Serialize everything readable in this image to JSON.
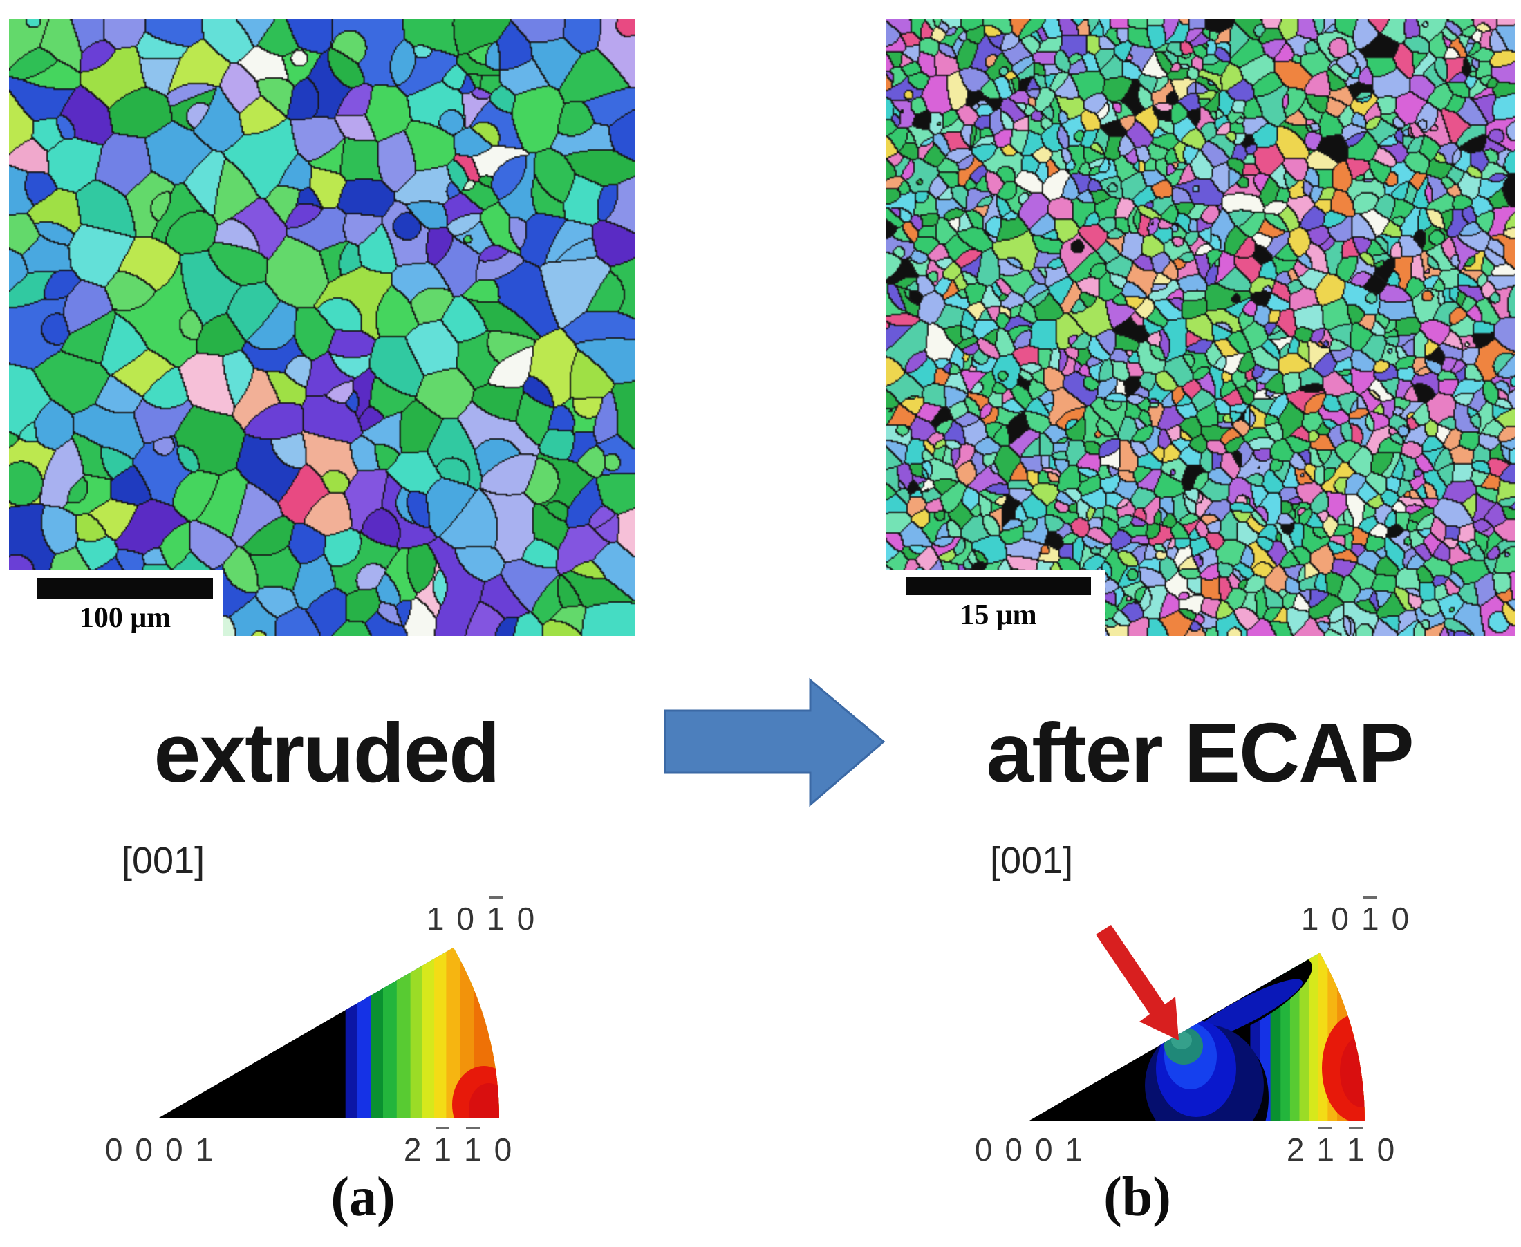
{
  "figure": {
    "panel_a": {
      "micrograph": {
        "scale_bar_label": "100 μm"
      },
      "state_label": "extruded",
      "pole_figure": {
        "axis_label": "[001]",
        "corner_labels": {
          "top_right": {
            "digits": [
              "1",
              "0",
              "1",
              "0"
            ],
            "overbars": [
              2
            ]
          },
          "bottom_left": {
            "digits": [
              "0",
              "0",
              "0",
              "1"
            ],
            "overbars": []
          },
          "bottom_right": {
            "digits": [
              "2",
              "1",
              "1",
              "0"
            ],
            "overbars": [
              1,
              2
            ]
          }
        }
      },
      "caption": "(a)"
    },
    "panel_b": {
      "micrograph": {
        "scale_bar_label": "15 μm"
      },
      "state_label": "after ECAP",
      "pole_figure": {
        "axis_label": "[001]",
        "corner_labels": {
          "top_right": {
            "digits": [
              "1",
              "0",
              "1",
              "0"
            ],
            "overbars": [
              2
            ]
          },
          "bottom_left": {
            "digits": [
              "0",
              "0",
              "0",
              "1"
            ],
            "overbars": []
          },
          "bottom_right": {
            "digits": [
              "2",
              "1",
              "1",
              "0"
            ],
            "overbars": [
              1,
              2
            ]
          }
        }
      },
      "caption": "(b)",
      "annotation_arrow_color": "#d81f1f"
    },
    "transition_arrow": {
      "fill": "#4c7fbd",
      "stroke": "#3b69a5"
    }
  },
  "colors": {
    "background": "#ffffff",
    "scale_bar": "#0a0a0a",
    "grain_boundary": "#161616",
    "ipf_base": "#000000",
    "ipf_contours": [
      "#0b16a6",
      "#1532e6",
      "#0a9130",
      "#23b53c",
      "#58cb32",
      "#9bdc26",
      "#d6e81c",
      "#f3dc16",
      "#f6b511",
      "#f2930b",
      "#ee7106"
    ],
    "ipf_red_hot": "#e7190a",
    "ipf_red_core": "#d90f0f",
    "ipf_blue_blob": [
      "#050e6e",
      "#0a18cc",
      "#1540ee"
    ],
    "ipf_blue_streak": "#0a18b8",
    "ipf_teal_spot": [
      "#1f8878",
      "#35a08b"
    ],
    "map_a_palette": [
      {
        "c": "#2fbf55",
        "w": 10
      },
      {
        "c": "#27b247",
        "w": 6
      },
      {
        "c": "#45d55e",
        "w": 7
      },
      {
        "c": "#63d96b",
        "w": 5
      },
      {
        "c": "#9fe045",
        "w": 5
      },
      {
        "c": "#bce84f",
        "w": 3
      },
      {
        "c": "#31c9a1",
        "w": 5
      },
      {
        "c": "#45dcc3",
        "w": 6
      },
      {
        "c": "#63e0d8",
        "w": 4
      },
      {
        "c": "#49a8e0",
        "w": 5
      },
      {
        "c": "#66b5ea",
        "w": 5
      },
      {
        "c": "#8fc3ee",
        "w": 3
      },
      {
        "c": "#2a51d4",
        "w": 5
      },
      {
        "c": "#3b6ae0",
        "w": 4
      },
      {
        "c": "#1f3bbf",
        "w": 3
      },
      {
        "c": "#7181e6",
        "w": 4
      },
      {
        "c": "#8b93ea",
        "w": 3
      },
      {
        "c": "#a8b1f0",
        "w": 2
      },
      {
        "c": "#6a3fd6",
        "w": 3
      },
      {
        "c": "#8355e0",
        "w": 2
      },
      {
        "c": "#5a2bc4",
        "w": 2
      },
      {
        "c": "#b9a6ef",
        "w": 1
      },
      {
        "c": "#f0a8cc",
        "w": 1.5
      },
      {
        "c": "#f6c0d8",
        "w": 1
      },
      {
        "c": "#e84a82",
        "w": 1
      },
      {
        "c": "#f2b097",
        "w": 0.7
      },
      {
        "c": "#f6f8f2",
        "w": 1.2
      },
      {
        "c": "#d6f5dc",
        "w": 1
      },
      {
        "c": "#101010",
        "w": 0.6
      }
    ],
    "map_b_palette": [
      {
        "c": "#35c96e",
        "w": 8
      },
      {
        "c": "#4fd68a",
        "w": 6
      },
      {
        "c": "#52cfa8",
        "w": 7
      },
      {
        "c": "#74e3b5",
        "w": 5
      },
      {
        "c": "#3fd0cd",
        "w": 5
      },
      {
        "c": "#62d8e8",
        "w": 4
      },
      {
        "c": "#8fe6da",
        "w": 3
      },
      {
        "c": "#79b5ec",
        "w": 4
      },
      {
        "c": "#9db4f0",
        "w": 4
      },
      {
        "c": "#8a8fe6",
        "w": 4
      },
      {
        "c": "#6a5ad8",
        "w": 3
      },
      {
        "c": "#9257d8",
        "w": 3
      },
      {
        "c": "#b668e0",
        "w": 2.5
      },
      {
        "c": "#d863d8",
        "w": 2.5
      },
      {
        "c": "#e87fc4",
        "w": 3
      },
      {
        "c": "#f2a6d2",
        "w": 2
      },
      {
        "c": "#e8548c",
        "w": 1.5
      },
      {
        "c": "#f2a477",
        "w": 2
      },
      {
        "c": "#ef8440",
        "w": 1.5
      },
      {
        "c": "#eed64f",
        "w": 2
      },
      {
        "c": "#f4eca2",
        "w": 1.5
      },
      {
        "c": "#f7f8f0",
        "w": 2
      },
      {
        "c": "#2bb14d",
        "w": 5
      },
      {
        "c": "#a6e45c",
        "w": 3
      },
      {
        "c": "#101010",
        "w": 2.5
      }
    ]
  }
}
